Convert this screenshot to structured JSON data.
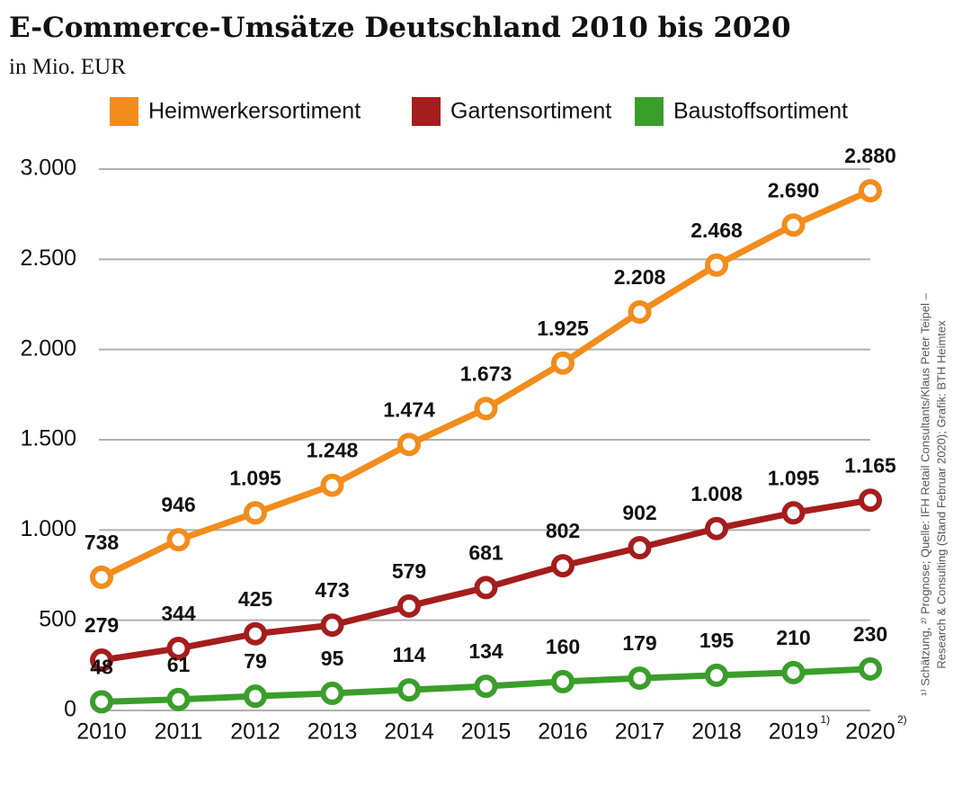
{
  "chart_data": {
    "type": "line",
    "title": "E-Commerce-Umsätze Deutschland 2010 bis 2020",
    "subtitle": "in Mio. EUR",
    "categories": [
      "2010",
      "2011",
      "2012",
      "2013",
      "2014",
      "2015",
      "2016",
      "2017",
      "2018",
      "2019",
      "2020"
    ],
    "category_notes": [
      null,
      null,
      null,
      null,
      null,
      null,
      null,
      null,
      null,
      "1)",
      "2)"
    ],
    "series": [
      {
        "name": "Heimwerkersortiment",
        "color": "#f28c1c",
        "values": [
          738,
          946,
          1095,
          1248,
          1474,
          1673,
          1925,
          2208,
          2468,
          2690,
          2880
        ],
        "value_labels": [
          "738",
          "946",
          "1.095",
          "1.248",
          "1.474",
          "1.673",
          "1.925",
          "2.208",
          "2.468",
          "2.690",
          "2.880"
        ]
      },
      {
        "name": "Gartensortiment",
        "color": "#a51d1d",
        "values": [
          279,
          344,
          425,
          473,
          579,
          681,
          802,
          902,
          1008,
          1095,
          1165
        ],
        "value_labels": [
          "279",
          "344",
          "425",
          "473",
          "579",
          "681",
          "802",
          "902",
          "1.008",
          "1.095",
          "1.165"
        ]
      },
      {
        "name": "Baustoffsortiment",
        "color": "#3a9e2a",
        "values": [
          48,
          61,
          79,
          95,
          114,
          134,
          160,
          179,
          195,
          210,
          230
        ],
        "value_labels": [
          "48",
          "61",
          "79",
          "95",
          "114",
          "134",
          "160",
          "179",
          "195",
          "210",
          "230"
        ]
      }
    ],
    "ylim": [
      0,
      3000
    ],
    "yticks": [
      0,
      500,
      {
        "value": 1000,
        "label": "1.000"
      },
      {
        "value": 1500,
        "label": "1.500"
      },
      {
        "value": 2000,
        "label": "2.000"
      },
      {
        "value": 2500,
        "label": "2.500"
      },
      {
        "value": 3000,
        "label": "3.000"
      }
    ],
    "grid": true,
    "legend": "top",
    "source_lines": [
      "¹⁾ Schätzung, ²⁾ Prognose; Quelle: IFH Retail Consultants/Klaus Peter Teipel –",
      "Research & Consulting (Stand Februar 2020); Grafik: BTH Heimtex"
    ]
  }
}
